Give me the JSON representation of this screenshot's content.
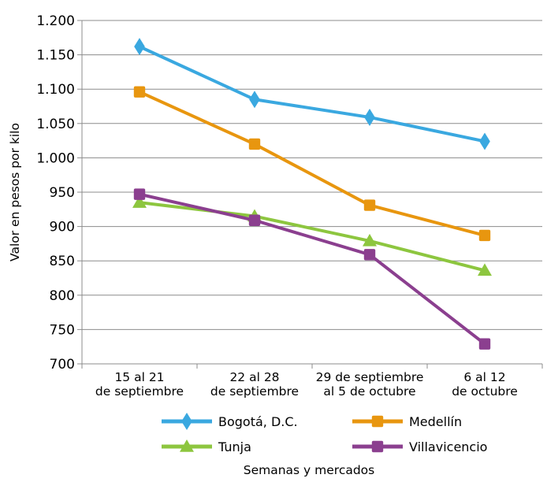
{
  "chart_data": {
    "type": "line",
    "title": "",
    "xlabel": "Semanas y mercados",
    "ylabel": "Valor en pesos por kilo",
    "ylim": [
      700,
      1200
    ],
    "yticks": [
      "700",
      "750",
      "800",
      "850",
      "900",
      "950",
      "1.000",
      "1.050",
      "1.100",
      "1.150",
      "1.200"
    ],
    "categories": [
      [
        "15 al 21",
        "de septiembre"
      ],
      [
        "22 al 28",
        "de septiembre"
      ],
      [
        "29 de septiembre",
        "al 5 de octubre"
      ],
      [
        "6 al 12",
        "de octubre"
      ]
    ],
    "grid": "horizontal",
    "legend_position": "bottom",
    "series": [
      {
        "name": "Bogotá, D.C.",
        "values": [
          1162,
          1085,
          1059,
          1024
        ],
        "color": "#3aa8e0",
        "marker": "diamond"
      },
      {
        "name": "Medellín",
        "values": [
          1096,
          1020,
          931,
          887
        ],
        "color": "#e8960f",
        "marker": "square"
      },
      {
        "name": "Tunja",
        "values": [
          935,
          915,
          879,
          836
        ],
        "color": "#8dc63f",
        "marker": "triangle"
      },
      {
        "name": "Villavicencio",
        "values": [
          947,
          909,
          859,
          729
        ],
        "color": "#8b3f8f",
        "marker": "square"
      }
    ]
  }
}
